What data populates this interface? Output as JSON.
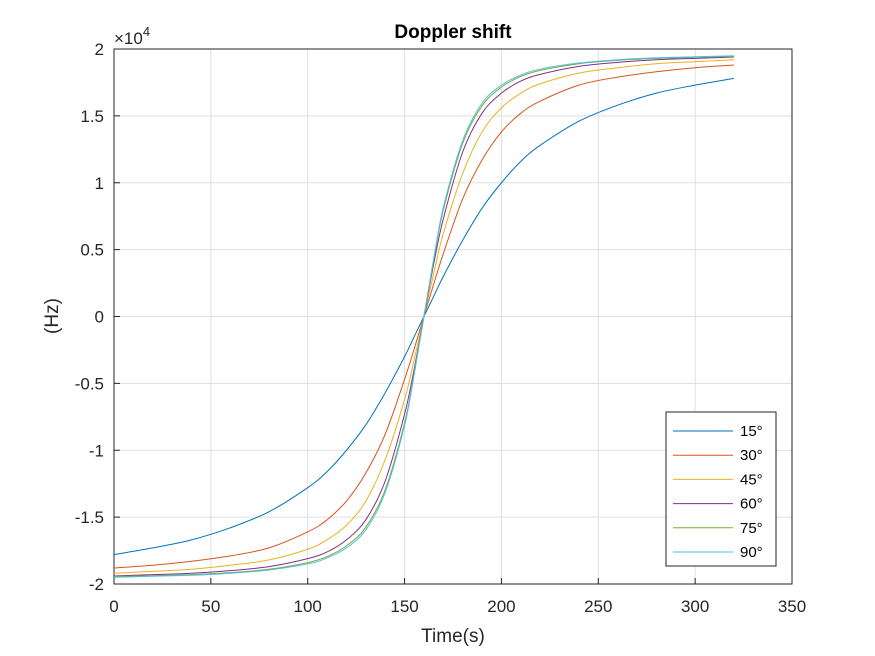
{
  "chart_data": {
    "type": "line",
    "title": "Doppler shift",
    "xlabel": "Time(s)",
    "ylabel": "(Hz)",
    "y_exponent_label": "×10",
    "y_exponent_power": "4",
    "xlim": [
      0,
      350
    ],
    "ylim": [
      -20000,
      20000
    ],
    "x_ticks": [
      0,
      50,
      100,
      150,
      200,
      250,
      300,
      350
    ],
    "x_tick_labels": [
      "0",
      "50",
      "100",
      "150",
      "200",
      "250",
      "300",
      "350"
    ],
    "y_ticks": [
      -20000,
      -15000,
      -10000,
      -5000,
      0,
      5000,
      10000,
      15000,
      20000
    ],
    "y_tick_labels": [
      "-2",
      "-1.5",
      "-1",
      "-0.5",
      "0",
      "0.5",
      "1",
      "1.5",
      "2"
    ],
    "grid": true,
    "legend_position": "bottom-right",
    "x": [
      0,
      20,
      40,
      60,
      80,
      100,
      110,
      120,
      130,
      140,
      150,
      155,
      160,
      165,
      170,
      180,
      190,
      200,
      210,
      220,
      240,
      260,
      280,
      300,
      320
    ],
    "series": [
      {
        "name": "15°",
        "color": "#0072BD",
        "values": [
          -17800,
          -17300,
          -16700,
          -15800,
          -14600,
          -12800,
          -11600,
          -10000,
          -8100,
          -5700,
          -3000,
          -1500,
          0,
          1500,
          3000,
          5700,
          8100,
          10000,
          11600,
          12800,
          14600,
          15800,
          16700,
          17300,
          17800
        ]
      },
      {
        "name": "30°",
        "color": "#D95319",
        "values": [
          -18800,
          -18600,
          -18300,
          -17900,
          -17300,
          -16100,
          -15200,
          -13800,
          -11700,
          -8800,
          -4700,
          -2400,
          0,
          2400,
          4700,
          8800,
          11700,
          13800,
          15200,
          16100,
          17300,
          17900,
          18300,
          18600,
          18800
        ]
      },
      {
        "name": "45°",
        "color": "#EDB120",
        "values": [
          -19200,
          -19050,
          -18900,
          -18600,
          -18200,
          -17400,
          -16700,
          -15600,
          -13800,
          -10700,
          -6200,
          -3200,
          0,
          3200,
          6200,
          10700,
          13800,
          15600,
          16700,
          17400,
          18200,
          18600,
          18900,
          19050,
          19200
        ]
      },
      {
        "name": "60°",
        "color": "#7E2F8E",
        "values": [
          -19400,
          -19300,
          -19200,
          -19000,
          -18700,
          -18100,
          -17600,
          -16700,
          -15200,
          -12300,
          -7300,
          -3900,
          0,
          3900,
          7300,
          12300,
          15200,
          16700,
          17600,
          18100,
          18700,
          19000,
          19200,
          19300,
          19400
        ]
      },
      {
        "name": "75°",
        "color": "#77AC30",
        "values": [
          -19450,
          -19380,
          -19300,
          -19150,
          -18900,
          -18400,
          -17950,
          -17150,
          -15750,
          -12950,
          -7950,
          -4200,
          0,
          4200,
          7950,
          12950,
          15750,
          17150,
          17950,
          18400,
          18900,
          19150,
          19300,
          19380,
          19450
        ]
      },
      {
        "name": "90°",
        "color": "#4DBEEE",
        "values": [
          -19500,
          -19420,
          -19350,
          -19200,
          -18950,
          -18500,
          -18050,
          -17300,
          -15950,
          -13150,
          -8150,
          -4300,
          0,
          4300,
          8150,
          13150,
          15950,
          17300,
          18050,
          18500,
          18950,
          19200,
          19350,
          19420,
          19500
        ]
      }
    ]
  }
}
